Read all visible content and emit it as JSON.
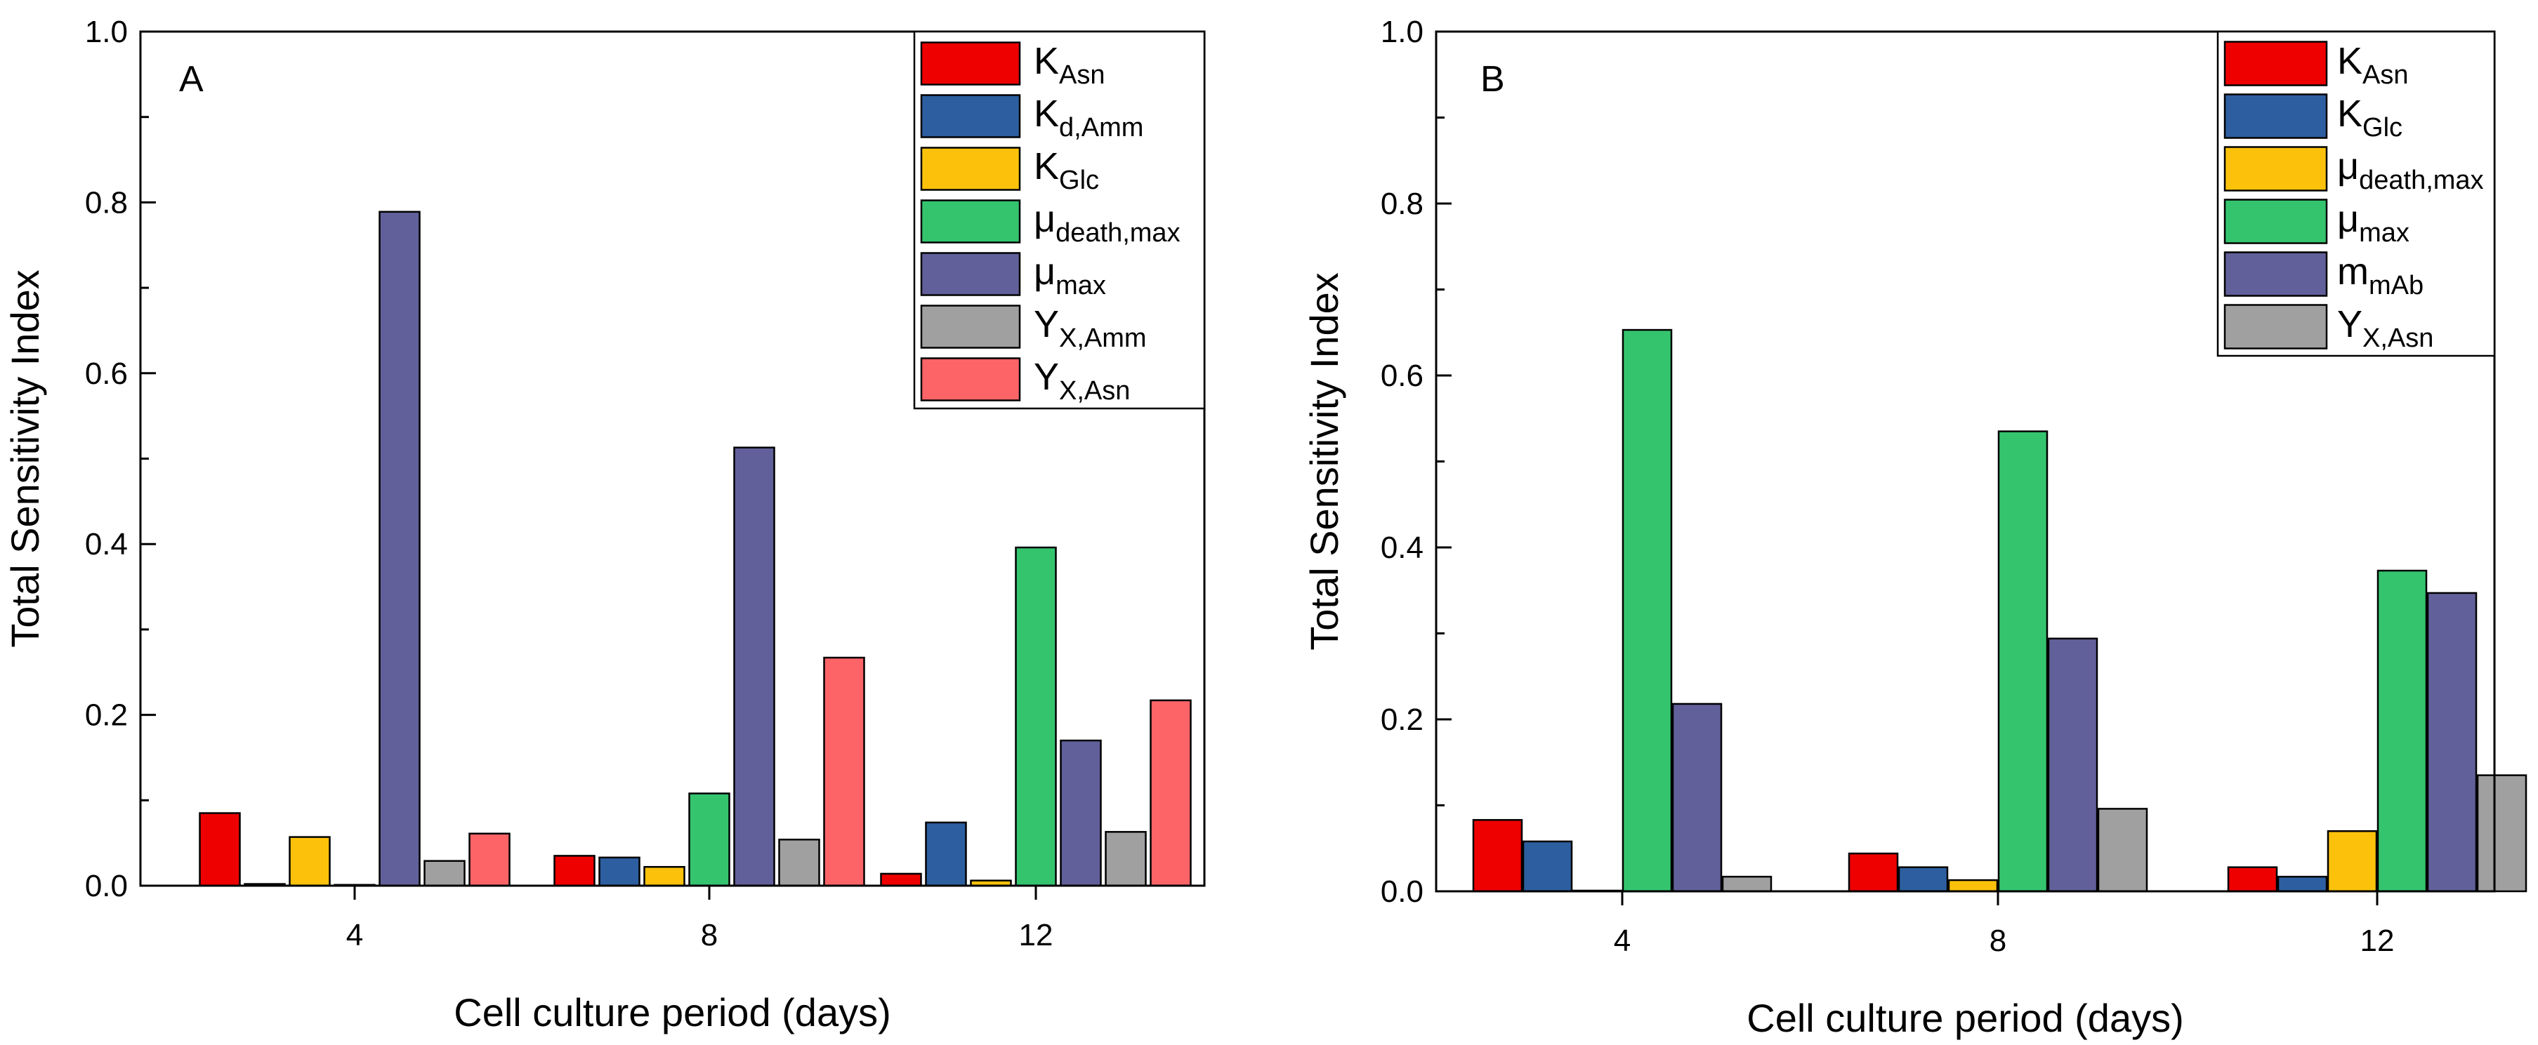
{
  "figure": {
    "panels": [
      "A",
      "B"
    ]
  },
  "colors": {
    "red": "#ee0000",
    "blue": "#2d5fa0",
    "yellow": "#fcc20b",
    "green": "#35c46e",
    "purple": "#62609a",
    "gray": "#a0a0a0",
    "salmon": "#fd6467"
  },
  "chart_data": [
    {
      "type": "bar",
      "panel_label": "A",
      "xlabel": "Cell culture period (days)",
      "ylabel": "Total Sensitivity Index",
      "ylim": [
        0,
        1.0
      ],
      "yticks": [
        "0.0",
        "0.2",
        "0.4",
        "0.6",
        "0.8",
        "1.0"
      ],
      "categories": [
        "4",
        "8",
        "12"
      ],
      "legend_position": "top-right",
      "series": [
        {
          "base": "K",
          "sub": "Asn",
          "color": "#ee0000",
          "values": [
            0.085,
            0.035,
            0.014
          ]
        },
        {
          "base": "K",
          "sub": "d,Amm",
          "color": "#2d5fa0",
          "values": [
            0.002,
            0.033,
            0.074
          ]
        },
        {
          "base": "K",
          "sub": "Glc",
          "color": "#fcc20b",
          "values": [
            0.057,
            0.022,
            0.006
          ]
        },
        {
          "base": "μ",
          "sub": "death,max",
          "color": "#35c46e",
          "values": [
            0.001,
            0.108,
            0.396
          ]
        },
        {
          "base": "μ",
          "sub": "max",
          "color": "#62609a",
          "values": [
            0.789,
            0.513,
            0.17
          ]
        },
        {
          "base": "Y",
          "sub": "X,Amm",
          "color": "#a0a0a0",
          "values": [
            0.029,
            0.054,
            0.063
          ]
        },
        {
          "base": "Y",
          "sub": "X,Asn",
          "color": "#fd6467",
          "values": [
            0.061,
            0.267,
            0.217
          ]
        }
      ]
    },
    {
      "type": "bar",
      "panel_label": "B",
      "xlabel": "Cell culture period (days)",
      "ylabel": "Total Sensitivity Index",
      "ylim": [
        0,
        1.0
      ],
      "yticks": [
        "0.0",
        "0.2",
        "0.4",
        "0.6",
        "0.8",
        "1.0"
      ],
      "categories": [
        "4",
        "8",
        "12"
      ],
      "legend_position": "top-right",
      "series": [
        {
          "base": "K",
          "sub": "Asn",
          "color": "#ee0000",
          "values": [
            0.083,
            0.044,
            0.028
          ]
        },
        {
          "base": "K",
          "sub": "Glc",
          "color": "#2d5fa0",
          "values": [
            0.058,
            0.028,
            0.017
          ]
        },
        {
          "base": "μ",
          "sub": "death,max",
          "color": "#fcc20b",
          "values": [
            0.0,
            0.013,
            0.07
          ]
        },
        {
          "base": "μ",
          "sub": "max",
          "color": "#35c46e",
          "values": [
            0.653,
            0.535,
            0.373
          ]
        },
        {
          "base": "m",
          "sub": "mAb",
          "color": "#62609a",
          "values": [
            0.218,
            0.294,
            0.347
          ]
        },
        {
          "base": "Y",
          "sub": "X,Asn",
          "color": "#a0a0a0",
          "values": [
            0.017,
            0.096,
            0.135
          ]
        }
      ]
    }
  ]
}
